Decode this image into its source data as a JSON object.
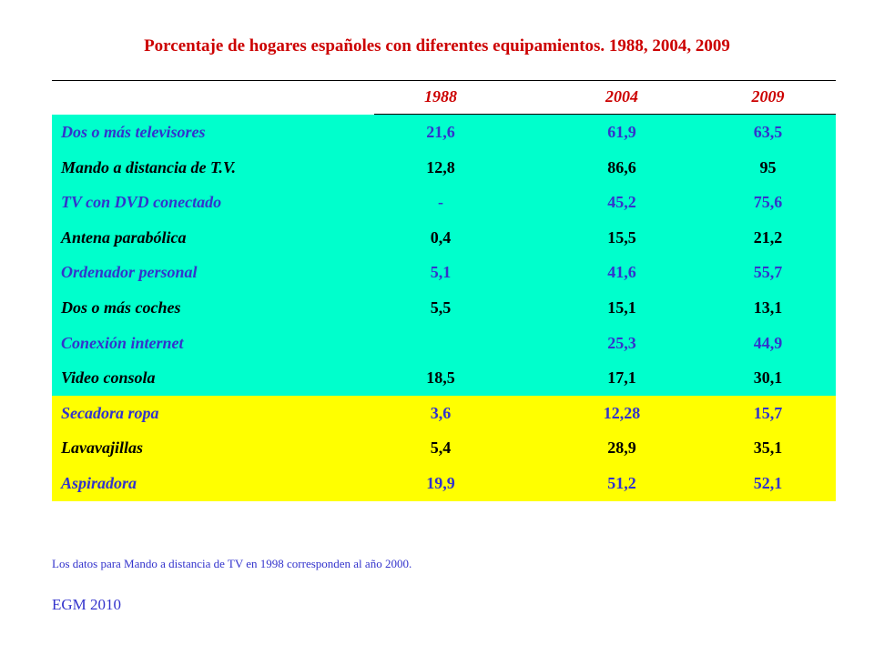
{
  "title": "Porcentaje de hogares españoles con diferentes equipamientos. 1988, 2004,  2009",
  "columns": [
    "1988",
    "2004",
    "2009"
  ],
  "rows": [
    {
      "label": "Dos o más televisores",
      "values": [
        "21,6",
        "61,9",
        "63,5"
      ],
      "group": "green",
      "text_color": "#3333cc"
    },
    {
      "label": "Mando a distancia de T.V.",
      "values": [
        "12,8",
        "86,6",
        "95"
      ],
      "group": "green",
      "text_color": "#000000"
    },
    {
      "label": "TV con DVD conectado",
      "values": [
        "-",
        "45,2",
        "75,6"
      ],
      "group": "green",
      "text_color": "#3333cc"
    },
    {
      "label": "Antena parabólica",
      "values": [
        "0,4",
        "15,5",
        "21,2"
      ],
      "group": "green",
      "text_color": "#000000"
    },
    {
      "label": "Ordenador personal",
      "values": [
        "5,1",
        "41,6",
        "55,7"
      ],
      "group": "green",
      "text_color": "#3333cc"
    },
    {
      "label": "Dos o más coches",
      "values": [
        "5,5",
        "15,1",
        "13,1"
      ],
      "group": "green",
      "text_color": "#000000"
    },
    {
      "label": "Conexión internet",
      "values": [
        "",
        "25,3",
        "44,9"
      ],
      "group": "green",
      "text_color": "#3333cc"
    },
    {
      "label": "Video consola",
      "values": [
        "18,5",
        "17,1",
        "30,1"
      ],
      "group": "green",
      "text_color": "#000000"
    },
    {
      "label": "Secadora ropa",
      "values": [
        "3,6",
        "12,28",
        "15,7"
      ],
      "group": "yellow",
      "text_color": "#3333cc"
    },
    {
      "label": "Lavavajillas",
      "values": [
        "5,4",
        "28,9",
        "35,1"
      ],
      "group": "yellow",
      "text_color": "#000000"
    },
    {
      "label": "Aspiradora",
      "values": [
        "19,9",
        "51,2",
        "52,1"
      ],
      "group": "yellow",
      "text_color": "#3333cc"
    }
  ],
  "colors": {
    "green_band": "#00ffcc",
    "yellow_band": "#ffff00",
    "title": "#cc0000",
    "blue_text": "#3333cc"
  },
  "footnote": "Los datos para Mando a distancia de TV en 1998 corresponden al año 2000.",
  "source": "EGM 2010"
}
